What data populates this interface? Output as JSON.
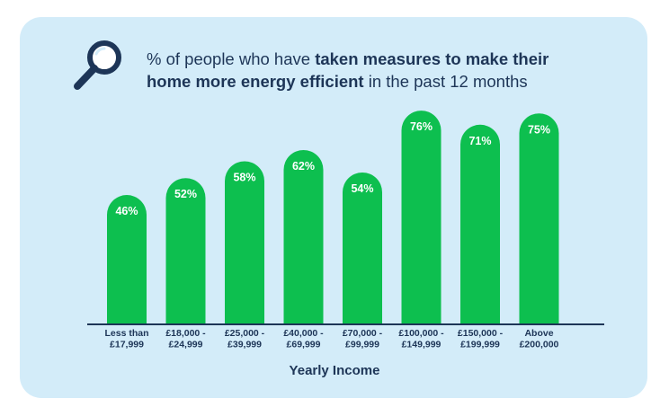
{
  "title": {
    "part1": "% of people who have ",
    "bold1": "taken measures to make their",
    "bold2": "home more energy efficient",
    "part2": " in the past 12 months"
  },
  "icons": {
    "title_icon": "magnifier-icon"
  },
  "colors": {
    "bar": "#0dbf4f",
    "background": "#d3ecf9",
    "text": "#1d3557"
  },
  "chart_data": {
    "type": "bar",
    "title": "% of people who have taken measures to make their home more energy efficient in the past 12 months",
    "xlabel": "Yearly Income",
    "ylabel": "",
    "categories": [
      [
        "Less than",
        "£17,999"
      ],
      [
        "£18,000 -",
        "£24,999"
      ],
      [
        "£25,000 -",
        "£39,999"
      ],
      [
        "£40,000 -",
        "£69,999"
      ],
      [
        "£70,000 -",
        "£99,999"
      ],
      [
        "£100,000 -",
        "£149,999"
      ],
      [
        "£150,000 -",
        "£199,999"
      ],
      [
        "Above",
        "£200,000"
      ]
    ],
    "values": [
      46,
      52,
      58,
      62,
      54,
      76,
      71,
      75
    ],
    "value_labels": [
      "46%",
      "52%",
      "58%",
      "62%",
      "54%",
      "76%",
      "71%",
      "75%"
    ],
    "ylim": [
      0,
      100
    ],
    "grid": false
  }
}
